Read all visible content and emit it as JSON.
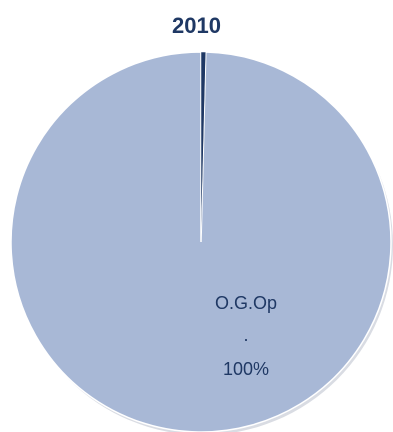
{
  "chart_data": {
    "type": "pie",
    "title": "2010",
    "slices": [
      {
        "label": "O.G.Op",
        "separator": ".",
        "value_text": "100%",
        "value": 99.6,
        "color": "#a8b8d6"
      },
      {
        "label": "",
        "value_text": "",
        "value": 0.4,
        "color": "#1f3864"
      }
    ],
    "legend": "none"
  }
}
